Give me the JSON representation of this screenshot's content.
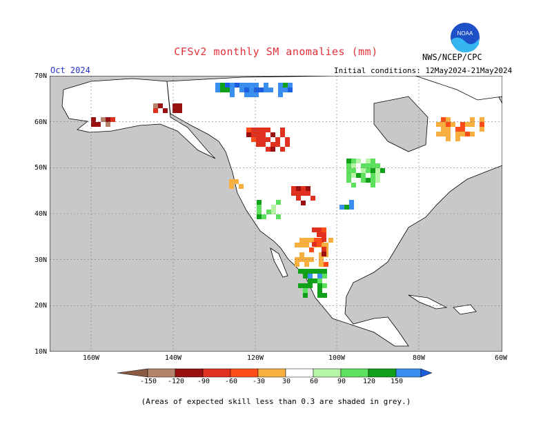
{
  "header": {
    "title": "CFSv2 monthly SM anomalies (mm)",
    "source": "NWS/NCEP/CPC",
    "month": "Oct 2024",
    "initial_conditions": "Initial conditions: 12May2024-21May2024",
    "logo_text": "NOAA"
  },
  "axes": {
    "lat_labels": [
      "70N",
      "60N",
      "50N",
      "40N",
      "30N",
      "20N",
      "10N"
    ],
    "lon_labels": [
      "160W",
      "140W",
      "120W",
      "100W",
      "80W",
      "60W"
    ]
  },
  "legend": {
    "labels": [
      "-150",
      "-120",
      "-90",
      "-60",
      "-30",
      "30",
      "60",
      "90",
      "120",
      "150"
    ],
    "colors": [
      "#8a5a44",
      "#b5826b",
      "#9a0f0f",
      "#e03020",
      "#ff4d1a",
      "#f7b040",
      "#ffffff",
      "#b6f5a8",
      "#5de05d",
      "#11a01a",
      "#3a8ef0",
      "#1d5de0"
    ]
  },
  "note": "(Areas of expected skill less than 0.3 are shaded in grey.)",
  "colors": {
    "ocean": "#c8c8c8",
    "land": "#ffffff",
    "title": "#e0303a",
    "month": "#2233cc"
  }
}
